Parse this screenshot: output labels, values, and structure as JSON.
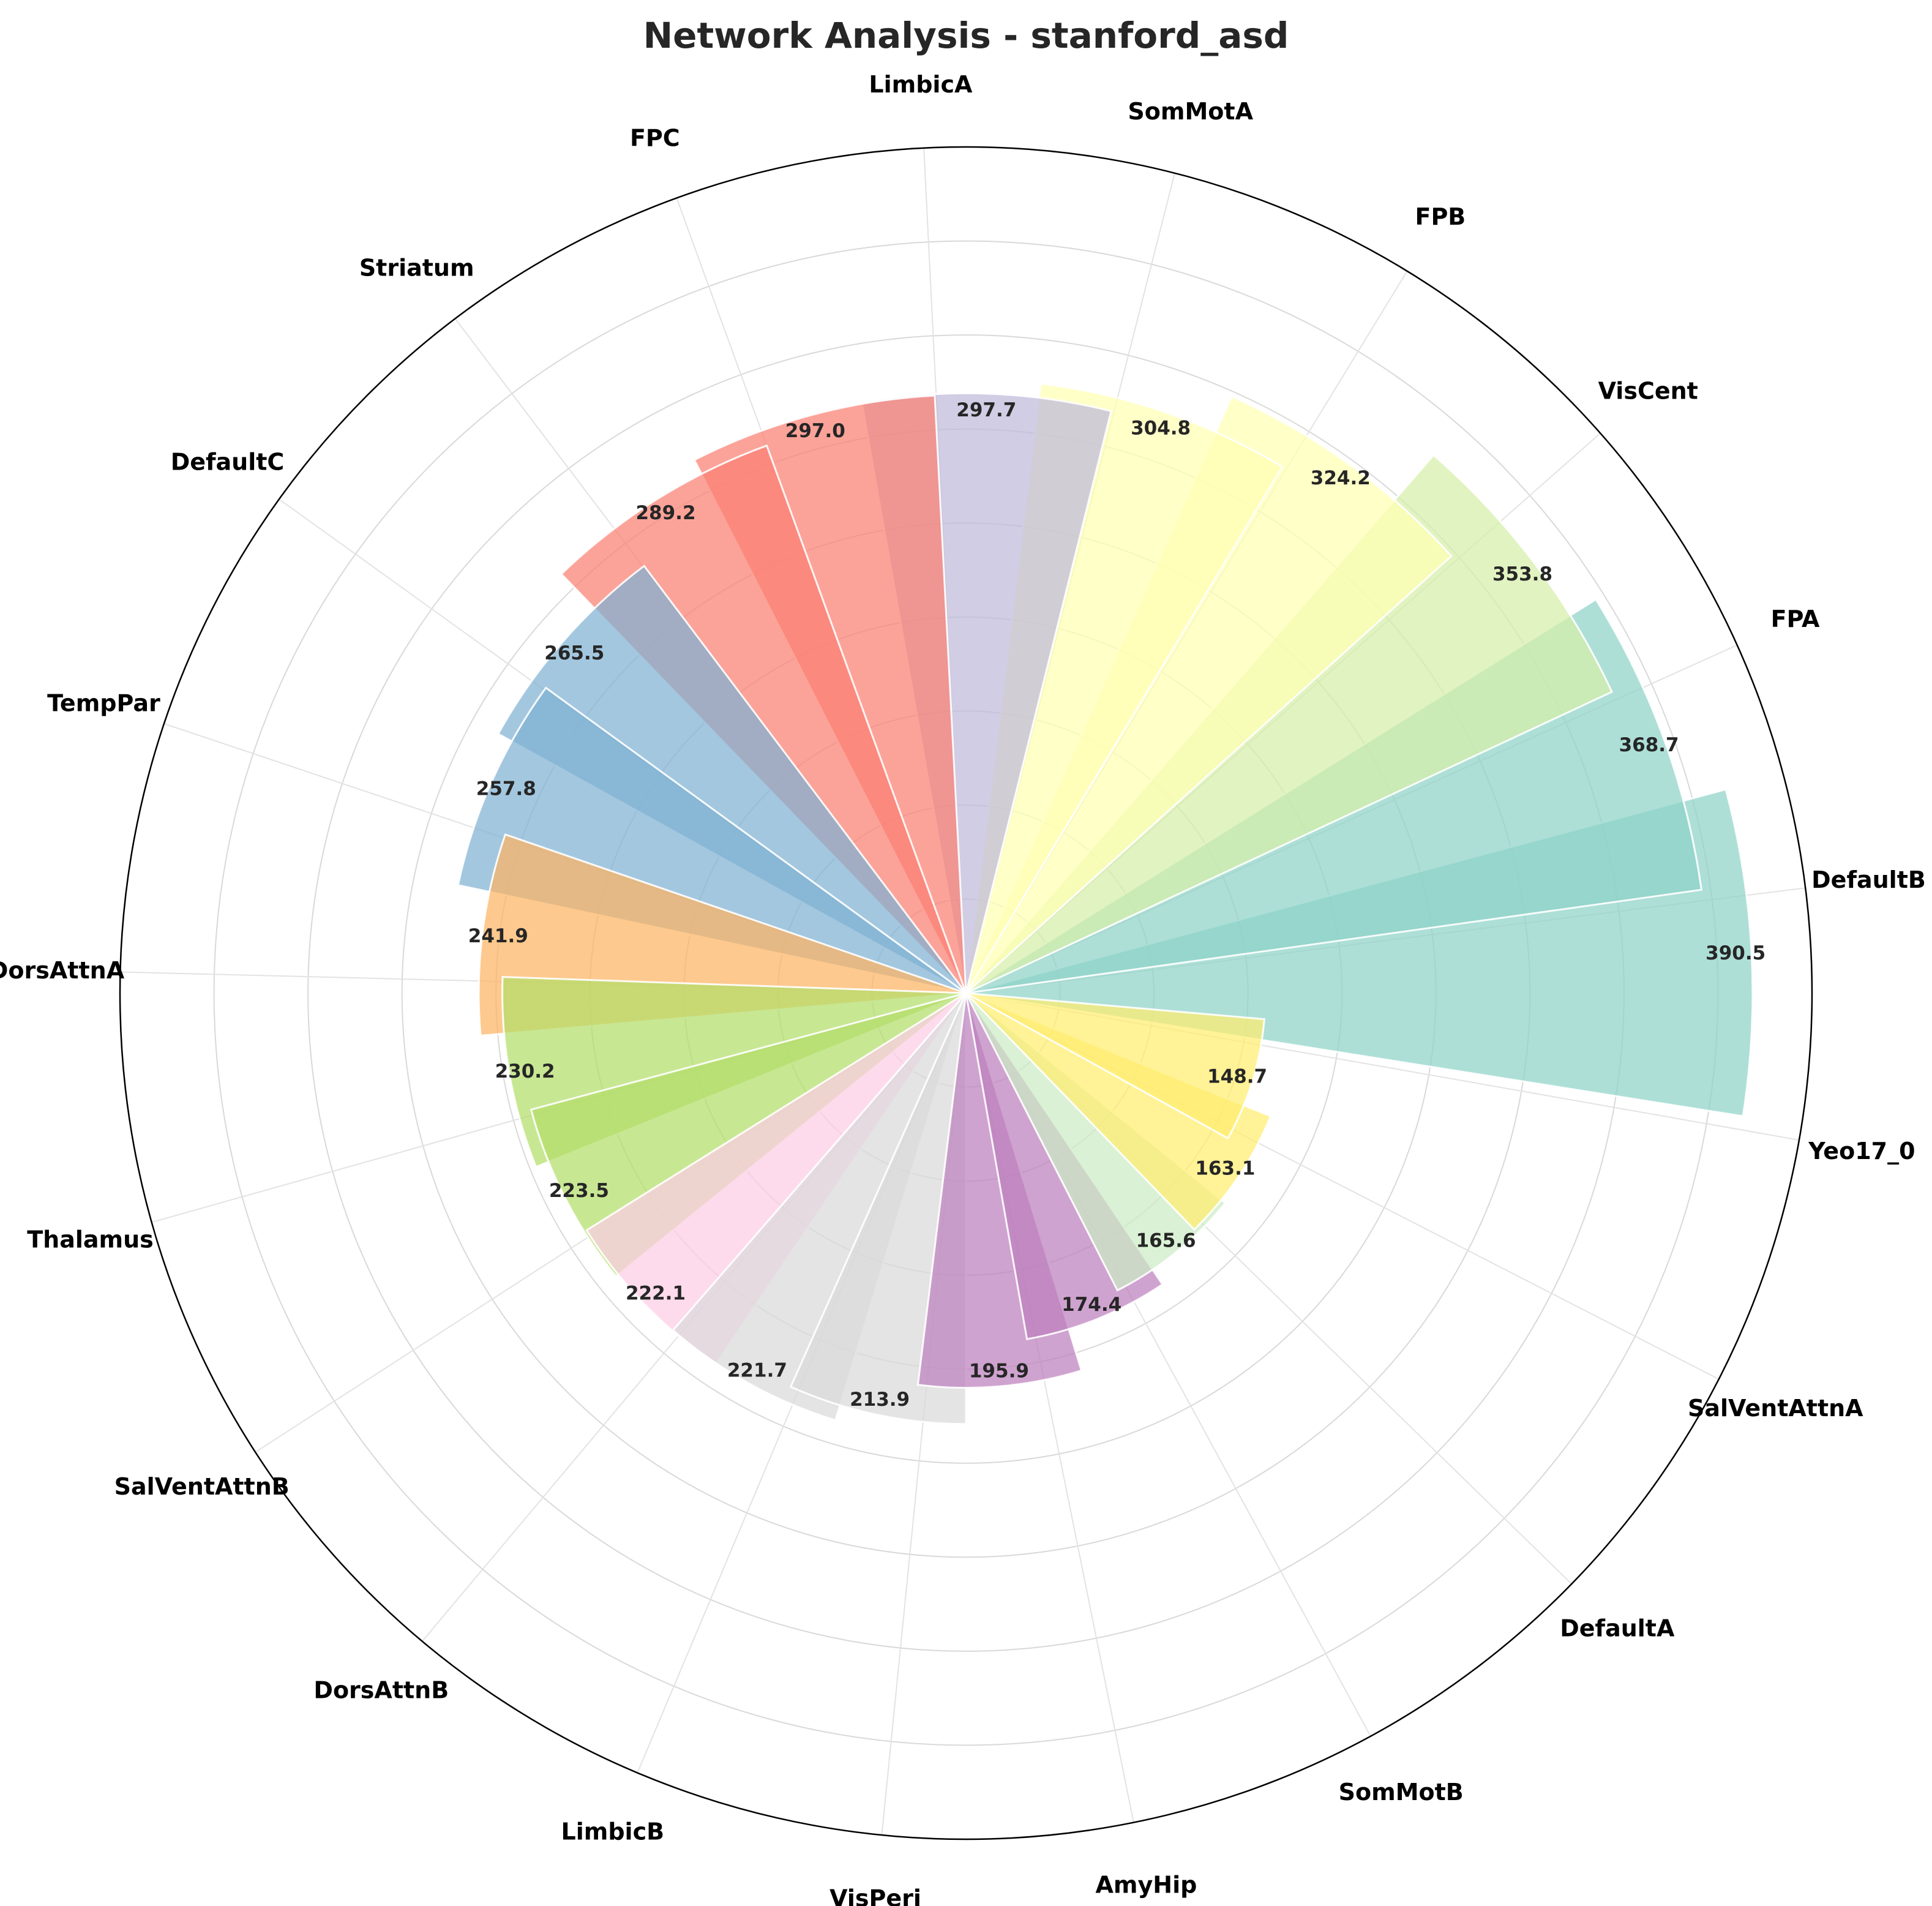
{
  "chart_data": {
    "type": "bar",
    "polar": true,
    "title": "Network Analysis - stanford_asd",
    "categories": [
      "Yeo17_0",
      "DefaultB",
      "FPA",
      "VisCent",
      "FPB",
      "SomMotA",
      "LimbicA",
      "FPC",
      "Striatum",
      "DefaultC",
      "TempPar",
      "DorsAttnA",
      "Thalamus",
      "SalVentAttnB",
      "DorsAttnB",
      "LimbicB",
      "VisPeri",
      "AmyHip",
      "SomMotB",
      "DefaultA",
      "SalVentAttnA"
    ],
    "bars": [
      {
        "label": "390.5",
        "value": 390.5,
        "start_deg": 351,
        "width_deg": 24,
        "color": "#8dd3c7"
      },
      {
        "label": "368.7",
        "value": 368.7,
        "start_deg": 8,
        "width_deg": 24,
        "color": "#8dd3c7"
      },
      {
        "label": "353.8",
        "value": 353.8,
        "start_deg": 25,
        "width_deg": 24,
        "color": "#d5efa9"
      },
      {
        "label": "324.2",
        "value": 324.2,
        "start_deg": 42,
        "width_deg": 24,
        "color": "#ffffb3"
      },
      {
        "label": "304.8",
        "value": 304.8,
        "start_deg": 59,
        "width_deg": 24,
        "color": "#ffffb3"
      },
      {
        "label": "297.7",
        "value": 297.7,
        "start_deg": 76,
        "width_deg": 24,
        "color": "#bebada"
      },
      {
        "label": "297.0",
        "value": 297.0,
        "start_deg": 93,
        "width_deg": 24,
        "color": "#fb8072"
      },
      {
        "label": "289.2",
        "value": 289.2,
        "start_deg": 110,
        "width_deg": 24,
        "color": "#fb8072"
      },
      {
        "label": "265.5",
        "value": 265.5,
        "start_deg": 127,
        "width_deg": 24,
        "color": "#80b1d3"
      },
      {
        "label": "257.8",
        "value": 257.8,
        "start_deg": 144,
        "width_deg": 24,
        "color": "#80b1d3"
      },
      {
        "label": "241.9",
        "value": 241.9,
        "start_deg": 161,
        "width_deg": 24,
        "color": "#fdb462"
      },
      {
        "label": "230.2",
        "value": 230.2,
        "start_deg": 178,
        "width_deg": 24,
        "color": "#b3de69"
      },
      {
        "label": "223.5",
        "value": 223.5,
        "start_deg": 195,
        "width_deg": 24,
        "color": "#b3de69"
      },
      {
        "label": "222.1",
        "value": 222.1,
        "start_deg": 212,
        "width_deg": 24,
        "color": "#fccde5"
      },
      {
        "label": "221.7",
        "value": 221.7,
        "start_deg": 229,
        "width_deg": 24,
        "color": "#d9d9d9"
      },
      {
        "label": "213.9",
        "value": 213.9,
        "start_deg": 246,
        "width_deg": 24,
        "color": "#d9d9d9"
      },
      {
        "label": "195.9",
        "value": 195.9,
        "start_deg": 263,
        "width_deg": 24,
        "color": "#bc80bd"
      },
      {
        "label": "174.4",
        "value": 174.4,
        "start_deg": 280,
        "width_deg": 24,
        "color": "#bc80bd"
      },
      {
        "label": "165.6",
        "value": 165.6,
        "start_deg": 297,
        "width_deg": 24,
        "color": "#ccebc5"
      },
      {
        "label": "163.1",
        "value": 163.1,
        "start_deg": 314,
        "width_deg": 24,
        "color": "#ffed6f"
      },
      {
        "label": "148.7",
        "value": 148.7,
        "start_deg": 331,
        "width_deg": 24,
        "color": "#ffed6f"
      }
    ],
    "rlim": [
      0,
      420
    ],
    "grid": true
  }
}
